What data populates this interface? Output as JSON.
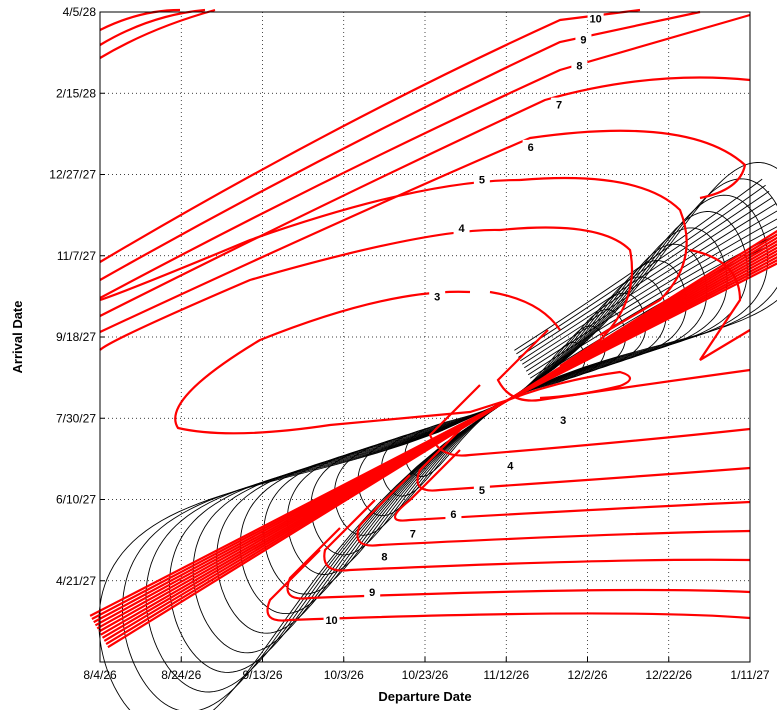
{
  "chart_data": {
    "type": "contour",
    "title": "",
    "xlabel": "Departure Date",
    "ylabel": "Arrival Date",
    "x_ticks": [
      "8/4/26",
      "8/24/26",
      "9/13/26",
      "10/3/26",
      "10/23/26",
      "11/12/26",
      "12/2/26",
      "12/22/26",
      "1/11/27"
    ],
    "y_ticks": [
      "4/21/27",
      "6/10/27",
      "7/30/27",
      "9/18/27",
      "11/7/27",
      "12/27/27",
      "2/15/28",
      "4/5/28"
    ],
    "xlim": [
      "8/4/26",
      "1/11/27"
    ],
    "ylim": [
      "3/2/27",
      "4/5/28"
    ],
    "grid": true,
    "series": [
      {
        "name": "",
        "color": "#ff0000",
        "levels": [
          3,
          4,
          5,
          6,
          7,
          8,
          9,
          10
        ]
      },
      {
        "name": "",
        "color": "#000000",
        "levels": []
      }
    ],
    "contour_labels": [
      {
        "text": "10",
        "x": "12/4/26",
        "y": "4/1/28"
      },
      {
        "text": "9",
        "x": "12/1/26",
        "y": "3/19/28"
      },
      {
        "text": "8",
        "x": "11/30/26",
        "y": "3/3/28"
      },
      {
        "text": "7",
        "x": "11/25/26",
        "y": "2/8/28"
      },
      {
        "text": "6",
        "x": "11/18/26",
        "y": "1/13/28"
      },
      {
        "text": "5",
        "x": "11/6/26",
        "y": "12/24/27"
      },
      {
        "text": "4",
        "x": "11/1/26",
        "y": "11/24/27"
      },
      {
        "text": "3",
        "x": "10/26/26",
        "y": "10/13/27"
      },
      {
        "text": "3",
        "x": "11/26/26",
        "y": "7/29/27"
      },
      {
        "text": "4",
        "x": "11/13/26",
        "y": "7/1/27"
      },
      {
        "text": "5",
        "x": "11/6/26",
        "y": "6/16/27"
      },
      {
        "text": "6",
        "x": "10/30/26",
        "y": "6/1/27"
      },
      {
        "text": "7",
        "x": "10/20/26",
        "y": "5/20/27"
      },
      {
        "text": "8",
        "x": "10/13/26",
        "y": "5/6/27"
      },
      {
        "text": "9",
        "x": "10/10/26",
        "y": "4/14/27"
      },
      {
        "text": "10",
        "x": "9/30/26",
        "y": "3/28/27"
      }
    ]
  }
}
